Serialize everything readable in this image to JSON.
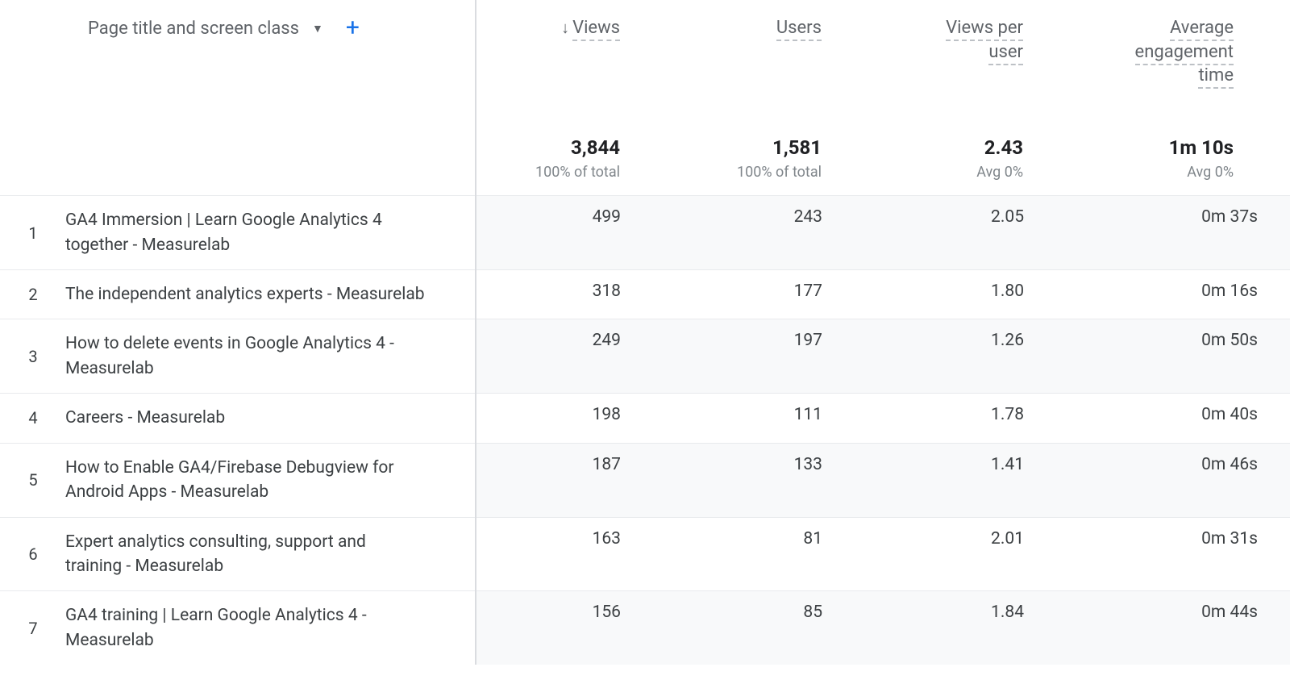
{
  "dimension": {
    "label": "Page title and screen class"
  },
  "metrics": [
    {
      "label": "Views",
      "summary_value": "3,844",
      "summary_sub": "100% of total",
      "sorted_desc": true
    },
    {
      "label": "Users",
      "summary_value": "1,581",
      "summary_sub": "100% of total",
      "sorted_desc": false
    },
    {
      "label": "Views per user",
      "summary_value": "2.43",
      "summary_sub": "Avg 0%",
      "sorted_desc": false
    },
    {
      "label": "Average engagement time",
      "summary_value": "1m 10s",
      "summary_sub": "Avg 0%",
      "sorted_desc": false
    }
  ],
  "rows": [
    {
      "index": "1",
      "title": "GA4 Immersion | Learn Google Analytics 4 together - Measurelab",
      "values": [
        "499",
        "243",
        "2.05",
        "0m 37s"
      ]
    },
    {
      "index": "2",
      "title": "The independent analytics experts - Measurelab",
      "values": [
        "318",
        "177",
        "1.80",
        "0m 16s"
      ]
    },
    {
      "index": "3",
      "title": "How to delete events in Google Analytics 4 - Measurelab",
      "values": [
        "249",
        "197",
        "1.26",
        "0m 50s"
      ]
    },
    {
      "index": "4",
      "title": "Careers - Measurelab",
      "values": [
        "198",
        "111",
        "1.78",
        "0m 40s"
      ]
    },
    {
      "index": "5",
      "title": "How to Enable GA4/Firebase Debugview for Android Apps - Measurelab",
      "values": [
        "187",
        "133",
        "1.41",
        "0m 46s"
      ]
    },
    {
      "index": "6",
      "title": "Expert analytics consulting, support and training - Measurelab",
      "values": [
        "163",
        "81",
        "2.01",
        "0m 31s"
      ]
    },
    {
      "index": "7",
      "title": "GA4 training | Learn Google Analytics 4 - Measurelab",
      "values": [
        "156",
        "85",
        "1.84",
        "0m 44s"
      ]
    }
  ],
  "colors": {
    "text": "#3c4043",
    "subtext": "#80868b",
    "header_text": "#5f6368",
    "accent": "#1a73e8",
    "row_stripe": "#f8f9fa",
    "border": "#e8eaed",
    "dashed": "#bdc1c6"
  }
}
